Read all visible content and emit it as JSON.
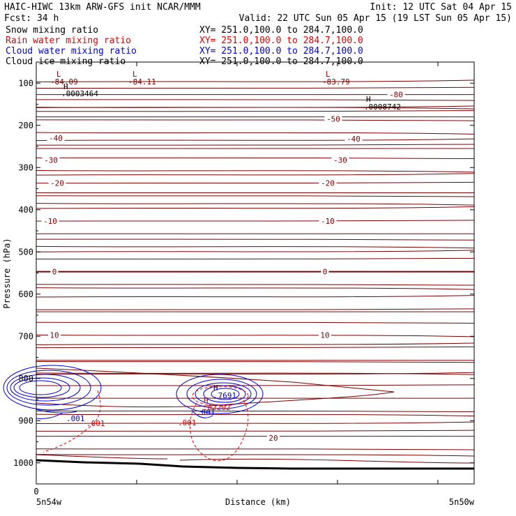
{
  "header": {
    "line1_left": "HAIC-HIWC 13km ARW-GFS init   NCAR/MMM",
    "line1_right": "Init: 12 UTC Sat 04 Apr 15",
    "line2_left": "Fcst:   34 h",
    "line2_right": "Valid: 22 UTC Sun 05 Apr 15 (19 LST Sun 05 Apr 15)",
    "fields": [
      {
        "name": "Snow mixing ratio",
        "xy": "XY= 251.0,100.0 to 284.7,100.0",
        "color": "#000000"
      },
      {
        "name": "Rain water mixing ratio",
        "xy": "XY= 251.0,100.0 to 284.7,100.0",
        "color": "#e00000"
      },
      {
        "name": "Cloud water mixing ratio",
        "xy": "XY= 251.0,100.0 to 284.7,100.0",
        "color": "#0000d0"
      },
      {
        "name": "Cloud ice mixing ratio",
        "xy": "XY= 251.0,100.0 to 284.7,100.0",
        "color": "#000000"
      }
    ]
  },
  "colors": {
    "temperature": "#7a0000",
    "rain": "#e00000",
    "cloud_water": "#0000d0",
    "snow": "#000000"
  },
  "chart_data": {
    "type": "contour cross-section",
    "xlabel": "Distance (km)",
    "ylabel": "Pressure (hPa)",
    "x_ticks": [
      "0"
    ],
    "x_endpoints": [
      "5n54w",
      "5n50w"
    ],
    "y_ticks": [
      100,
      200,
      300,
      400,
      500,
      600,
      700,
      800,
      900,
      1000
    ],
    "ylim": [
      1050,
      50
    ],
    "temperature_isotherm_labels": [
      {
        "value": "-80",
        "p": 127
      },
      {
        "value": "-50",
        "p": 185
      },
      {
        "value": "-40",
        "p": 230
      },
      {
        "value": "-40",
        "p": 232
      },
      {
        "value": "-30",
        "p": 282
      },
      {
        "value": "-30",
        "p": 282
      },
      {
        "value": "-20",
        "p": 337
      },
      {
        "value": "-20",
        "p": 337
      },
      {
        "value": "-10",
        "p": 427
      },
      {
        "value": "-10",
        "p": 427
      },
      {
        "value": "0",
        "p": 547
      },
      {
        "value": "0",
        "p": 547
      },
      {
        "value": "10",
        "p": 697
      },
      {
        "value": "10",
        "p": 697
      },
      {
        "value": "20",
        "p": 941
      }
    ],
    "extrema": [
      {
        "type": "L",
        "value": "-84.09",
        "p": 100
      },
      {
        "type": "L",
        "value": "-84.11",
        "p": 100
      },
      {
        "type": "L",
        "value": "-83.79",
        "p": 100
      },
      {
        "type": "H",
        "value": ".0003464",
        "p": 123
      },
      {
        "type": "H",
        "value": ".0008742",
        "p": 160
      },
      {
        "type": "H",
        "value": ".7691",
        "p": 830
      },
      {
        "type": "H",
        "value": ".02202",
        "p": 860
      }
    ],
    "rain_labels": [
      ".001",
      ".001"
    ],
    "cloud_water_labels": [
      ".001",
      ".001"
    ]
  }
}
